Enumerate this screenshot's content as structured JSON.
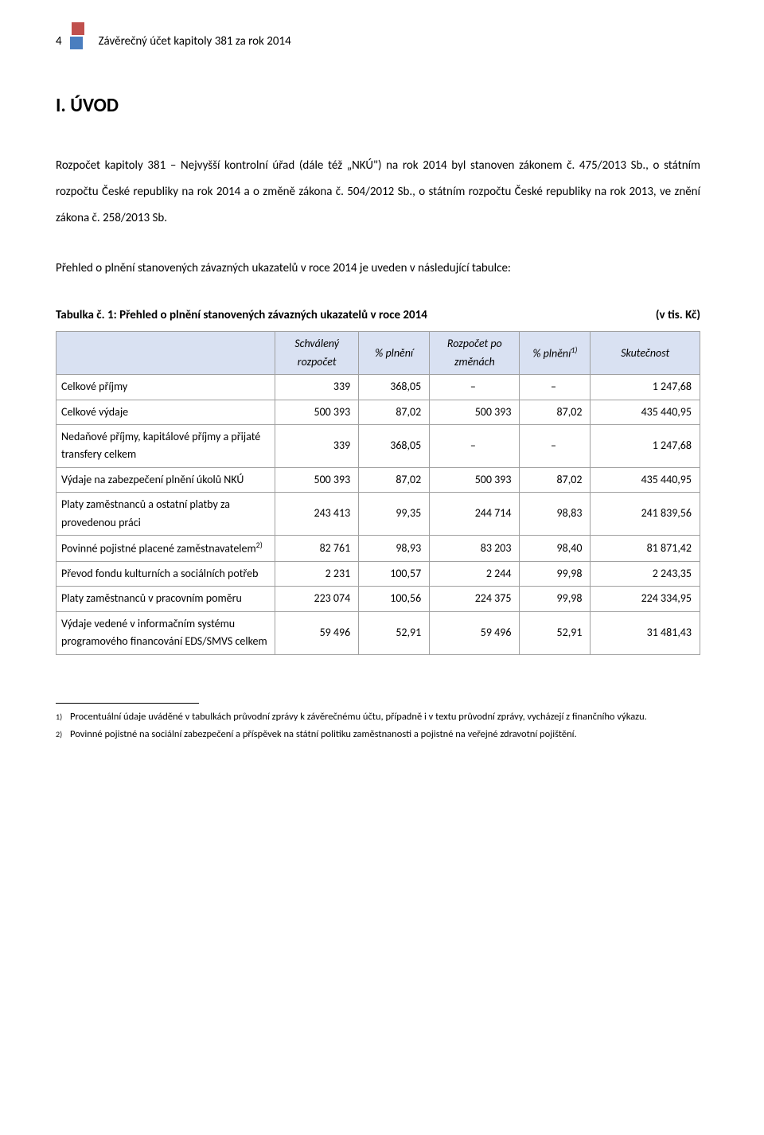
{
  "header": {
    "page_number": "4",
    "title": "Závěrečný účet kapitoly 381 za rok 2014"
  },
  "section_heading": "I. ÚVOD",
  "paragraph1": "Rozpočet kapitoly 381 – Nejvyšší kontrolní úřad (dále též „NKÚ\") na rok 2014 byl stanoven zákonem č. 475/2013 Sb., o státním rozpočtu České republiky na rok 2014 a o změně zákona č. 504/2012 Sb., o státním rozpočtu České republiky na rok 2013, ve znění zákona č. 258/2013 Sb.",
  "paragraph2": "Přehled o plnění stanovených závazných ukazatelů v roce 2014 je uveden v následující tabulce:",
  "table": {
    "title": "Tabulka č. 1: Přehled o plnění stanovených závazných ukazatelů v roce 2014",
    "unit_label": "(v tis. Kč)",
    "columns": {
      "c1": "",
      "c2": "Schválený rozpočet",
      "c3": "% plnění",
      "c4": "Rozpočet po změnách",
      "c5_pre": "% plnění",
      "c5_sup": "1)",
      "c6": "Skutečnost"
    },
    "rows": [
      {
        "label": "Celkové příjmy",
        "v1": "339",
        "v2": "368,05",
        "v3": "–",
        "v4": "–",
        "v5": "1 247,68"
      },
      {
        "label": "Celkové výdaje",
        "v1": "500 393",
        "v2": "87,02",
        "v3": "500 393",
        "v4": "87,02",
        "v5": "435 440,95"
      },
      {
        "label": "Nedaňové příjmy, kapitálové příjmy a přijaté transfery celkem",
        "v1": "339",
        "v2": "368,05",
        "v3": "–",
        "v4": "–",
        "v5": "1 247,68"
      },
      {
        "label": "Výdaje na zabezpečení plnění úkolů NKÚ",
        "v1": "500 393",
        "v2": "87,02",
        "v3": "500 393",
        "v4": "87,02",
        "v5": "435 440,95"
      },
      {
        "label_pre": "Platy zaměstnanců a ostatní platby za provedenou práci",
        "label_sup": "",
        "v1": "243 413",
        "v2": "99,35",
        "v3": "244 714",
        "v4": "98,83",
        "v5": "241 839,56"
      },
      {
        "label_pre": "Povinné pojistné placené zaměstnavatelem",
        "label_sup": "2)",
        "v1": "82 761",
        "v2": "98,93",
        "v3": "83 203",
        "v4": "98,40",
        "v5": "81 871,42"
      },
      {
        "label": "Převod fondu kulturních a sociálních potřeb",
        "v1": "2 231",
        "v2": "100,57",
        "v3": "2 244",
        "v4": "99,98",
        "v5": "2 243,35"
      },
      {
        "label": "Platy zaměstnanců v pracovním poměru",
        "v1": "223 074",
        "v2": "100,56",
        "v3": "224 375",
        "v4": "99,98",
        "v5": "224 334,95"
      },
      {
        "label": "Výdaje vedené v informačním systému programového financování EDS/SMVS celkem",
        "v1": "59 496",
        "v2": "52,91",
        "v3": "59 496",
        "v4": "52,91",
        "v5": "31 481,43"
      }
    ],
    "styling": {
      "header_bg": "#d9e1f2",
      "border_color": "#a0a0a0",
      "font_size": 14,
      "col_widths": [
        "34%",
        "13%",
        "11%",
        "14%",
        "11%",
        "17%"
      ]
    }
  },
  "footnotes": {
    "f1_num": "1)",
    "f1_text": "Procentuální údaje uváděné v tabulkách průvodní zprávy k závěrečnému účtu, případně i v textu průvodní zprávy, vycházejí z finančního výkazu.",
    "f2_num": "2)",
    "f2_text": "Povinné pojistné na sociální zabezpečení a příspěvek na státní politiku zaměstnanosti a pojistné na veřejné zdravotní pojištění."
  }
}
